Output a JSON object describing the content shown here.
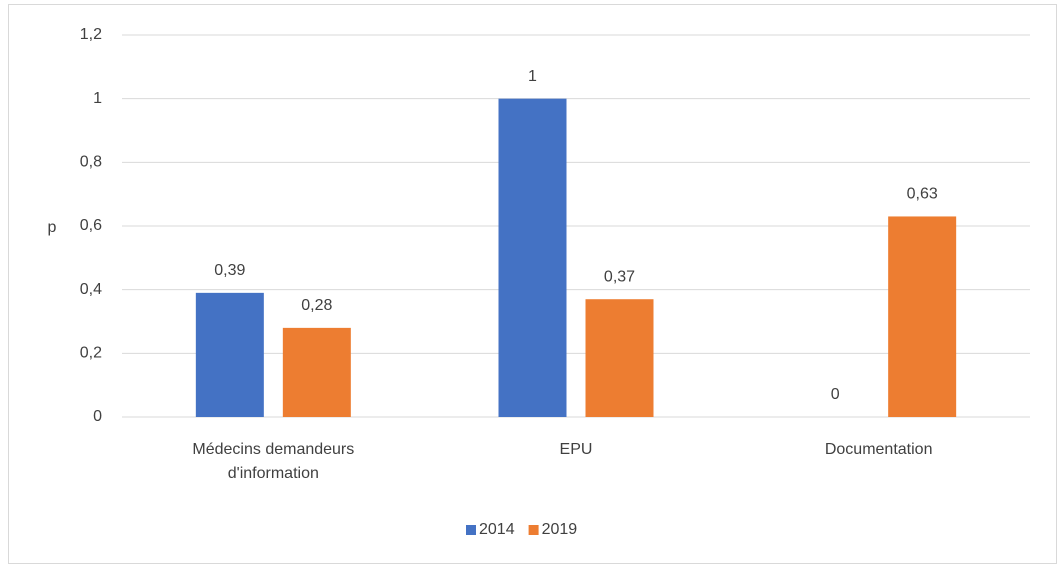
{
  "chart_data": {
    "type": "bar",
    "y_label": "p",
    "categories": [
      "Médecins demandeurs d'information",
      "EPU",
      "Documentation"
    ],
    "series": [
      {
        "name": "2014",
        "color": "#4472c4",
        "values": [
          0.39,
          1,
          0
        ],
        "value_labels": [
          "0,39",
          "1",
          "0"
        ]
      },
      {
        "name": "2019",
        "color": "#ed7d31",
        "values": [
          0.28,
          0.37,
          0.63
        ],
        "value_labels": [
          "0,28",
          "0,37",
          "0,63"
        ]
      }
    ],
    "ylim": [
      0,
      1.2
    ],
    "yticks": [
      0,
      {
        "value": 0.2,
        "label": "0,2"
      },
      {
        "value": 0.4,
        "label": "0,4"
      },
      {
        "value": 0.6,
        "label": "0,6"
      },
      {
        "value": 0.8,
        "label": "0,8"
      },
      1,
      {
        "value": 1.2,
        "label": "1,2"
      }
    ],
    "grid": true,
    "legend": "bottom"
  }
}
